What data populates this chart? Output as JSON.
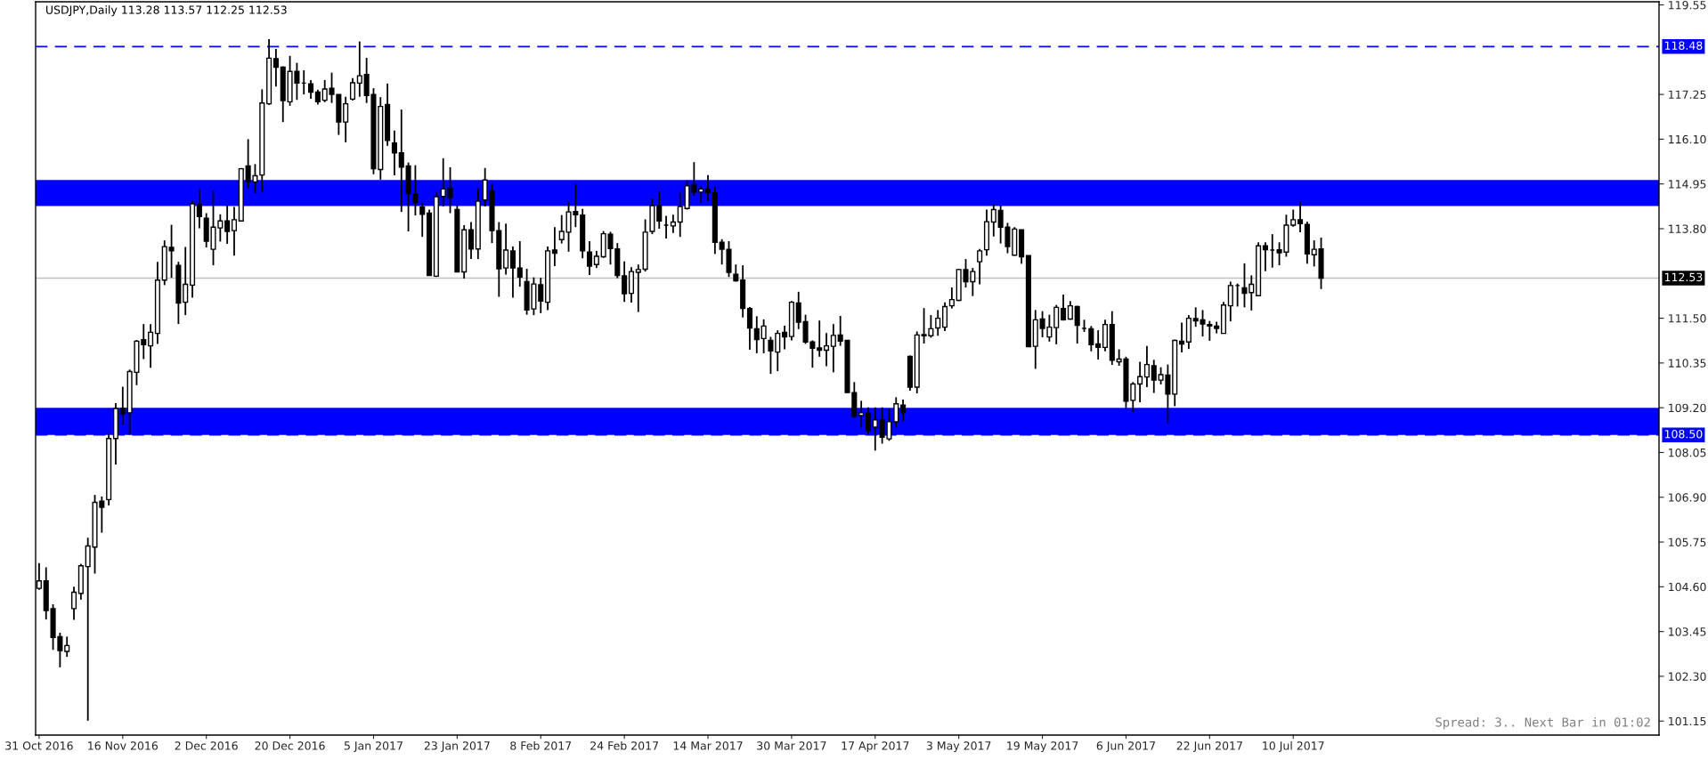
{
  "chart_data": {
    "type": "candlestick",
    "title": "USDJPY,Daily 113.28 113.57 112.25 112.53",
    "annotations": [
      "Spread: 3.. Next Bar in 01:02"
    ],
    "color": "#000000",
    "categories": [
      "31 Oct 2016",
      null,
      null,
      null,
      null,
      null,
      null,
      null,
      null,
      null,
      null,
      null,
      "16 Nov 2016",
      null,
      null,
      null,
      null,
      null,
      null,
      null,
      null,
      null,
      null,
      null,
      "2 Dec 2016",
      null,
      null,
      null,
      null,
      null,
      null,
      null,
      null,
      null,
      null,
      null,
      "20 Dec 2016",
      null,
      null,
      null,
      null,
      null,
      null,
      null,
      null,
      null,
      null,
      null,
      "5 Jan 2017",
      null,
      null,
      null,
      null,
      null,
      null,
      null,
      null,
      null,
      null,
      null,
      "23 Jan 2017",
      null,
      null,
      null,
      null,
      null,
      null,
      null,
      null,
      null,
      null,
      null,
      "8 Feb 2017",
      null,
      null,
      null,
      null,
      null,
      null,
      null,
      null,
      null,
      null,
      null,
      "24 Feb 2017",
      null,
      null,
      null,
      null,
      null,
      null,
      null,
      null,
      null,
      null,
      null,
      "14 Mar 2017",
      null,
      null,
      null,
      null,
      null,
      null,
      null,
      null,
      null,
      null,
      null,
      "30 Mar 2017",
      null,
      null,
      null,
      null,
      null,
      null,
      null,
      null,
      null,
      null,
      null,
      "17 Apr 2017",
      null,
      null,
      null,
      null,
      null,
      null,
      null,
      null,
      null,
      null,
      null,
      "3 May 2017",
      null,
      null,
      null,
      null,
      null,
      null,
      null,
      null,
      null,
      null,
      null,
      "19 May 2017",
      null,
      null,
      null,
      null,
      null,
      null,
      null,
      null,
      null,
      null,
      null,
      "6 Jun 2017",
      null,
      null,
      null,
      null,
      null,
      null,
      null,
      null,
      null,
      null,
      null,
      "22 Jun 2017",
      null,
      null,
      null,
      null,
      null,
      null,
      null,
      null,
      null,
      null,
      null,
      "10 Jul 2017",
      null,
      null,
      null,
      null,
      null,
      null,
      null,
      null,
      null,
      null,
      null,
      null,
      null,
      null,
      null,
      null,
      null,
      null,
      null,
      null,
      null,
      null,
      null,
      null,
      null,
      null,
      null,
      null,
      null,
      null,
      null,
      null,
      null,
      null,
      null,
      null,
      null,
      null,
      null,
      null,
      null,
      null,
      null,
      null,
      null,
      null,
      null,
      null,
      null,
      null,
      null,
      null
    ],
    "ohlc": [
      [
        104.56,
        105.21,
        104.52,
        104.75
      ],
      [
        104.75,
        105.1,
        103.76,
        103.99
      ],
      [
        104.04,
        104.15,
        102.98,
        103.3
      ],
      [
        103.32,
        103.42,
        102.53,
        102.96
      ],
      [
        102.94,
        103.32,
        102.8,
        103.09
      ],
      [
        104.04,
        104.6,
        103.75,
        104.46
      ],
      [
        104.43,
        105.19,
        104.27,
        105.14
      ],
      [
        105.12,
        105.86,
        101.16,
        105.65
      ],
      [
        105.62,
        106.96,
        104.94,
        106.77
      ],
      [
        106.8,
        106.92,
        105.99,
        106.64
      ],
      [
        106.84,
        108.52,
        106.69,
        108.41
      ],
      [
        108.41,
        109.32,
        107.74,
        109.18
      ],
      [
        109.18,
        109.74,
        108.77,
        109.05
      ],
      [
        109.07,
        110.18,
        108.51,
        110.13
      ],
      [
        110.11,
        110.94,
        109.78,
        110.91
      ],
      [
        110.95,
        111.35,
        110.45,
        110.82
      ],
      [
        110.79,
        111.35,
        110.23,
        111.14
      ],
      [
        111.11,
        112.95,
        110.84,
        112.48
      ],
      [
        112.48,
        113.5,
        112.35,
        113.34
      ],
      [
        113.32,
        113.9,
        112.54,
        113.23
      ],
      [
        112.86,
        112.95,
        111.35,
        111.89
      ],
      [
        111.91,
        113.33,
        111.58,
        112.37
      ],
      [
        112.35,
        114.52,
        112.03,
        114.44
      ],
      [
        114.43,
        114.81,
        113.81,
        114.11
      ],
      [
        114.07,
        114.2,
        113.32,
        113.48
      ],
      [
        113.27,
        114.77,
        112.86,
        113.84
      ],
      [
        113.82,
        114.17,
        113.47,
        114.0
      ],
      [
        114.0,
        114.4,
        113.41,
        113.73
      ],
      [
        113.75,
        114.36,
        113.11,
        114.03
      ],
      [
        114.0,
        115.36,
        113.98,
        115.34
      ],
      [
        115.41,
        116.1,
        114.84,
        115.01
      ],
      [
        115.0,
        115.46,
        114.71,
        115.16
      ],
      [
        115.18,
        117.38,
        114.73,
        117.03
      ],
      [
        117.01,
        118.67,
        116.98,
        118.18
      ],
      [
        118.17,
        118.42,
        117.45,
        117.95
      ],
      [
        117.95,
        117.97,
        116.54,
        117.09
      ],
      [
        117.06,
        118.24,
        116.96,
        117.84
      ],
      [
        117.84,
        118.06,
        117.11,
        117.54
      ],
      [
        117.54,
        117.87,
        117.25,
        117.54
      ],
      [
        117.52,
        117.62,
        117.14,
        117.31
      ],
      [
        117.31,
        117.37,
        116.99,
        117.06
      ],
      [
        117.1,
        117.62,
        117.05,
        117.39
      ],
      [
        117.41,
        117.81,
        117.03,
        117.25
      ],
      [
        117.25,
        117.25,
        116.21,
        116.54
      ],
      [
        116.54,
        117.19,
        116.02,
        117.01
      ],
      [
        117.13,
        117.67,
        117.09,
        117.55
      ],
      [
        117.54,
        118.61,
        117.19,
        117.73
      ],
      [
        117.76,
        118.19,
        117.03,
        117.22
      ],
      [
        117.25,
        117.41,
        115.2,
        115.34
      ],
      [
        115.32,
        117.18,
        115.06,
        116.94
      ],
      [
        116.99,
        117.53,
        115.93,
        116.07
      ],
      [
        116.0,
        116.32,
        115.17,
        115.75
      ],
      [
        115.75,
        116.86,
        114.23,
        115.38
      ],
      [
        115.41,
        115.5,
        113.73,
        114.7
      ],
      [
        114.69,
        115.43,
        114.14,
        114.47
      ],
      [
        114.36,
        114.46,
        113.59,
        114.17
      ],
      [
        114.2,
        114.29,
        112.59,
        112.6
      ],
      [
        112.58,
        114.74,
        112.56,
        114.62
      ],
      [
        114.63,
        115.61,
        114.37,
        114.82
      ],
      [
        114.84,
        115.38,
        114.2,
        114.6
      ],
      [
        114.29,
        114.4,
        112.68,
        112.69
      ],
      [
        112.69,
        113.89,
        112.52,
        113.77
      ],
      [
        113.77,
        113.97,
        113.02,
        113.28
      ],
      [
        113.28,
        114.84,
        113.02,
        114.51
      ],
      [
        114.54,
        115.36,
        114.37,
        115.05
      ],
      [
        114.77,
        114.95,
        113.43,
        113.75
      ],
      [
        113.75,
        113.97,
        112.05,
        112.77
      ],
      [
        112.79,
        113.93,
        112.62,
        113.25
      ],
      [
        113.23,
        113.34,
        112.03,
        112.79
      ],
      [
        112.79,
        113.48,
        112.31,
        112.56
      ],
      [
        112.44,
        112.77,
        111.59,
        111.71
      ],
      [
        111.74,
        112.55,
        111.58,
        112.38
      ],
      [
        112.36,
        112.54,
        111.63,
        111.94
      ],
      [
        111.91,
        113.34,
        111.71,
        113.23
      ],
      [
        113.25,
        113.84,
        112.84,
        113.17
      ],
      [
        113.52,
        114.15,
        113.42,
        113.73
      ],
      [
        113.71,
        114.49,
        113.21,
        114.23
      ],
      [
        114.24,
        114.95,
        113.84,
        114.16
      ],
      [
        114.15,
        114.31,
        113.04,
        113.23
      ],
      [
        113.2,
        113.48,
        112.61,
        112.84
      ],
      [
        112.88,
        113.23,
        112.79,
        113.09
      ],
      [
        113.08,
        113.74,
        113.05,
        113.67
      ],
      [
        113.66,
        113.72,
        112.88,
        113.29
      ],
      [
        113.28,
        113.43,
        112.53,
        112.6
      ],
      [
        112.59,
        112.96,
        111.92,
        112.13
      ],
      [
        112.14,
        112.81,
        111.9,
        112.7
      ],
      [
        112.68,
        112.88,
        111.66,
        112.75
      ],
      [
        112.76,
        114.04,
        112.7,
        113.71
      ],
      [
        113.73,
        114.58,
        113.66,
        114.39
      ],
      [
        114.39,
        114.76,
        113.8,
        114.0
      ],
      [
        113.89,
        114.13,
        113.55,
        113.89
      ],
      [
        113.87,
        114.16,
        113.69,
        113.97
      ],
      [
        113.97,
        114.74,
        113.59,
        114.37
      ],
      [
        114.32,
        115.04,
        114.29,
        114.9
      ],
      [
        114.93,
        115.51,
        114.65,
        114.74
      ],
      [
        114.74,
        114.9,
        114.46,
        114.82
      ],
      [
        114.82,
        115.18,
        114.51,
        114.73
      ],
      [
        114.72,
        114.88,
        113.15,
        113.45
      ],
      [
        113.45,
        113.53,
        112.88,
        113.27
      ],
      [
        113.27,
        113.48,
        112.56,
        112.68
      ],
      [
        112.63,
        112.88,
        112.44,
        112.46
      ],
      [
        112.48,
        112.86,
        111.52,
        111.75
      ],
      [
        111.75,
        111.79,
        110.69,
        111.25
      ],
      [
        111.23,
        111.55,
        110.6,
        110.95
      ],
      [
        110.98,
        111.47,
        110.6,
        111.3
      ],
      [
        110.93,
        111.02,
        110.07,
        110.66
      ],
      [
        110.63,
        111.19,
        110.14,
        111.11
      ],
      [
        111.14,
        111.31,
        110.7,
        111.02
      ],
      [
        111.03,
        111.94,
        110.93,
        111.91
      ],
      [
        111.89,
        112.18,
        111.22,
        111.4
      ],
      [
        111.41,
        111.59,
        110.84,
        110.89
      ],
      [
        110.89,
        110.93,
        110.23,
        110.73
      ],
      [
        110.74,
        111.44,
        110.51,
        110.68
      ],
      [
        110.68,
        111.12,
        110.27,
        110.79
      ],
      [
        110.78,
        111.35,
        110.11,
        111.06
      ],
      [
        111.07,
        111.56,
        110.79,
        110.91
      ],
      [
        110.93,
        110.93,
        109.58,
        109.59
      ],
      [
        109.59,
        109.86,
        108.94,
        108.98
      ],
      [
        109.0,
        109.38,
        108.69,
        109.07
      ],
      [
        109.07,
        109.21,
        108.52,
        108.61
      ],
      [
        108.7,
        109.21,
        108.1,
        108.89
      ],
      [
        108.89,
        109.21,
        108.28,
        108.44
      ],
      [
        108.4,
        109.17,
        108.35,
        108.84
      ],
      [
        108.84,
        109.47,
        108.69,
        109.3
      ],
      [
        109.27,
        109.41,
        108.85,
        109.07
      ],
      [
        110.52,
        110.54,
        109.64,
        109.73
      ],
      [
        109.73,
        111.16,
        109.57,
        111.07
      ],
      [
        111.05,
        111.76,
        110.85,
        111.08
      ],
      [
        111.05,
        111.58,
        111.0,
        111.23
      ],
      [
        111.25,
        111.71,
        111.05,
        111.5
      ],
      [
        111.27,
        111.91,
        111.17,
        111.8
      ],
      [
        111.82,
        112.29,
        111.75,
        111.98
      ],
      [
        111.96,
        112.77,
        111.94,
        112.75
      ],
      [
        112.75,
        113.02,
        112.29,
        112.44
      ],
      [
        112.44,
        112.79,
        112.07,
        112.7
      ],
      [
        112.95,
        113.28,
        112.37,
        113.23
      ],
      [
        113.26,
        114.29,
        113.11,
        113.98
      ],
      [
        113.97,
        114.43,
        113.6,
        114.29
      ],
      [
        114.27,
        114.4,
        113.42,
        113.84
      ],
      [
        113.84,
        113.95,
        113.17,
        113.34
      ],
      [
        113.12,
        113.84,
        113.11,
        113.79
      ],
      [
        113.77,
        113.77,
        112.9,
        113.08
      ],
      [
        113.11,
        113.11,
        110.76,
        110.77
      ],
      [
        110.78,
        111.71,
        110.2,
        111.46
      ],
      [
        111.48,
        111.68,
        111.01,
        111.24
      ],
      [
        111.02,
        111.59,
        110.9,
        111.27
      ],
      [
        111.26,
        111.84,
        110.83,
        111.78
      ],
      [
        111.75,
        112.11,
        111.44,
        111.46
      ],
      [
        111.48,
        111.94,
        111.46,
        111.82
      ],
      [
        111.8,
        111.82,
        110.85,
        111.32
      ],
      [
        111.24,
        111.46,
        111.15,
        111.24
      ],
      [
        111.23,
        111.3,
        110.65,
        110.82
      ],
      [
        110.84,
        111.19,
        110.44,
        110.75
      ],
      [
        110.75,
        111.46,
        110.65,
        111.34
      ],
      [
        111.34,
        111.68,
        110.3,
        110.42
      ],
      [
        110.38,
        110.7,
        110.28,
        110.45
      ],
      [
        110.45,
        110.51,
        109.19,
        109.37
      ],
      [
        109.39,
        109.86,
        109.09,
        109.81
      ],
      [
        109.81,
        110.38,
        109.34,
        110.0
      ],
      [
        109.99,
        110.79,
        109.73,
        110.31
      ],
      [
        110.28,
        110.43,
        109.58,
        109.91
      ],
      [
        109.91,
        110.24,
        109.8,
        110.05
      ],
      [
        110.04,
        110.31,
        108.8,
        109.55
      ],
      [
        109.55,
        110.95,
        109.24,
        110.93
      ],
      [
        110.91,
        111.39,
        110.62,
        110.84
      ],
      [
        110.89,
        111.58,
        110.71,
        111.5
      ],
      [
        111.49,
        111.78,
        111.28,
        111.43
      ],
      [
        111.46,
        111.71,
        111.03,
        111.35
      ],
      [
        111.34,
        111.43,
        110.92,
        111.3
      ],
      [
        111.3,
        111.41,
        111.11,
        111.24
      ],
      [
        111.11,
        111.92,
        111.1,
        111.84
      ],
      [
        111.82,
        112.44,
        111.42,
        112.34
      ],
      [
        112.34,
        112.39,
        111.8,
        112.34
      ],
      [
        112.28,
        112.91,
        111.78,
        112.14
      ],
      [
        112.16,
        112.6,
        111.7,
        112.37
      ],
      [
        112.08,
        113.45,
        112.07,
        113.36
      ],
      [
        113.36,
        113.45,
        112.71,
        113.26
      ],
      [
        113.25,
        113.66,
        112.8,
        113.25
      ],
      [
        113.26,
        113.45,
        112.86,
        113.18
      ],
      [
        113.2,
        114.16,
        113.08,
        113.89
      ],
      [
        113.89,
        114.29,
        113.85,
        114.03
      ],
      [
        114.03,
        114.49,
        113.71,
        113.93
      ],
      [
        113.91,
        113.98,
        112.9,
        113.15
      ],
      [
        113.13,
        113.5,
        112.83,
        113.27
      ],
      [
        113.28,
        113.57,
        112.25,
        112.53
      ],
      null,
      null,
      null,
      null,
      null,
      null,
      null,
      null,
      null,
      null,
      null,
      null,
      null,
      null,
      null,
      null,
      null,
      null,
      null,
      null,
      null,
      null,
      null,
      null,
      null,
      null,
      null,
      null,
      null,
      null,
      null,
      null,
      null,
      null,
      null,
      null,
      null,
      null,
      null,
      null,
      null,
      null,
      null,
      null,
      null,
      null,
      null,
      null
    ],
    "ylim": [
      100.79,
      119.63
    ],
    "yticks": [
      {
        "value": 119.55,
        "label": "119.55"
      },
      {
        "value": 117.25,
        "label": "117.25"
      },
      {
        "value": 116.1,
        "label": "116.10"
      },
      {
        "value": 114.95,
        "label": "114.95"
      },
      {
        "value": 113.8,
        "label": "113.80"
      },
      {
        "value": 111.5,
        "label": "111.50"
      },
      {
        "value": 110.35,
        "label": "110.35"
      },
      {
        "value": 109.2,
        "label": "109.20"
      },
      {
        "value": 108.05,
        "label": "108.05"
      },
      {
        "value": 106.9,
        "label": "106.90"
      },
      {
        "value": 105.75,
        "label": "105.75"
      },
      {
        "value": 104.6,
        "label": "104.60"
      },
      {
        "value": 103.45,
        "label": "103.45"
      },
      {
        "value": 102.3,
        "label": "102.30"
      },
      {
        "value": 101.15,
        "label": "101.15"
      }
    ],
    "bands": [
      {
        "axis": "y",
        "from": 114.38,
        "to": 115.05,
        "color": "#0000ff"
      },
      {
        "axis": "y",
        "from": 108.5,
        "to": 109.2,
        "color": "#0000ff"
      }
    ],
    "ref_lines": [
      {
        "axis": "y",
        "value": 118.48,
        "label": "118.48",
        "color": "#0000ff",
        "line_style": "dashed"
      },
      {
        "axis": "y",
        "value": 108.5,
        "label": "108.50",
        "color": "#0000ff",
        "line_style": "dashed"
      },
      {
        "axis": "y",
        "value": 112.53,
        "label": "112.53",
        "color": "#c0c0c0",
        "line_style": "solid"
      }
    ],
    "grid": false
  }
}
